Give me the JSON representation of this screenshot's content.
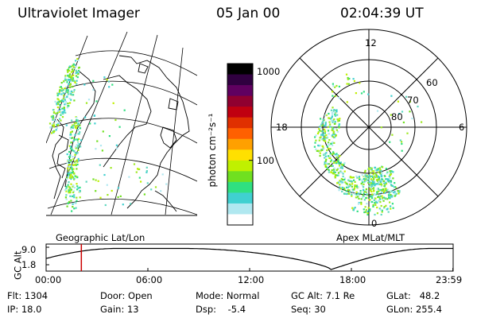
{
  "header": {
    "title": "Ultraviolet Imager",
    "date": "05 Jan 00",
    "time": "02:04:39 UT"
  },
  "colorbar": {
    "unit_label": "photon cm⁻²s⁻¹",
    "tick_labels": [
      "1000",
      "100"
    ],
    "tick_values": [
      1000,
      100
    ],
    "range": [
      18,
      1300
    ],
    "colors": [
      "#ffffff",
      "#b0e8f0",
      "#40d0d0",
      "#30e080",
      "#70e020",
      "#c0f000",
      "#ffe000",
      "#ffa000",
      "#ff6000",
      "#e03000",
      "#c00010",
      "#900030",
      "#600060",
      "#300040",
      "#000000"
    ]
  },
  "geo_panel": {
    "label": "Geographic Lat/Lon"
  },
  "polar_panel": {
    "label": "Apex MLat/MLT",
    "mlt_labels": {
      "top": "12",
      "left": "18",
      "right": "6",
      "bottom": "0"
    },
    "lat_labels": [
      "60",
      "70",
      "80"
    ],
    "lat_values": [
      60,
      70,
      80
    ]
  },
  "orbit_strip": {
    "ylabel": "GC Alt",
    "y_ticks": [
      "9.0",
      "1.8"
    ],
    "y_values": [
      9.0,
      1.8
    ],
    "time_labels": [
      "00:00",
      "06:00",
      "12:00",
      "18:00",
      "23:59"
    ],
    "time_hours": [
      0,
      6,
      12,
      18,
      23.983
    ],
    "current_time_hours": 2.078,
    "marker_color": "#cc0000"
  },
  "status": {
    "flt": "Flt: 1304",
    "ip": "IP: 18.0",
    "door": "Door: Open",
    "gain": "Gain: 13",
    "mode": "Mode: Normal",
    "dsp": "Dsp:    -5.4",
    "gcalt": "GC Alt: 7.1 Re",
    "seq": "Seq: 30",
    "glat": "GLat:   48.2",
    "glon": "GLon: 255.4"
  }
}
